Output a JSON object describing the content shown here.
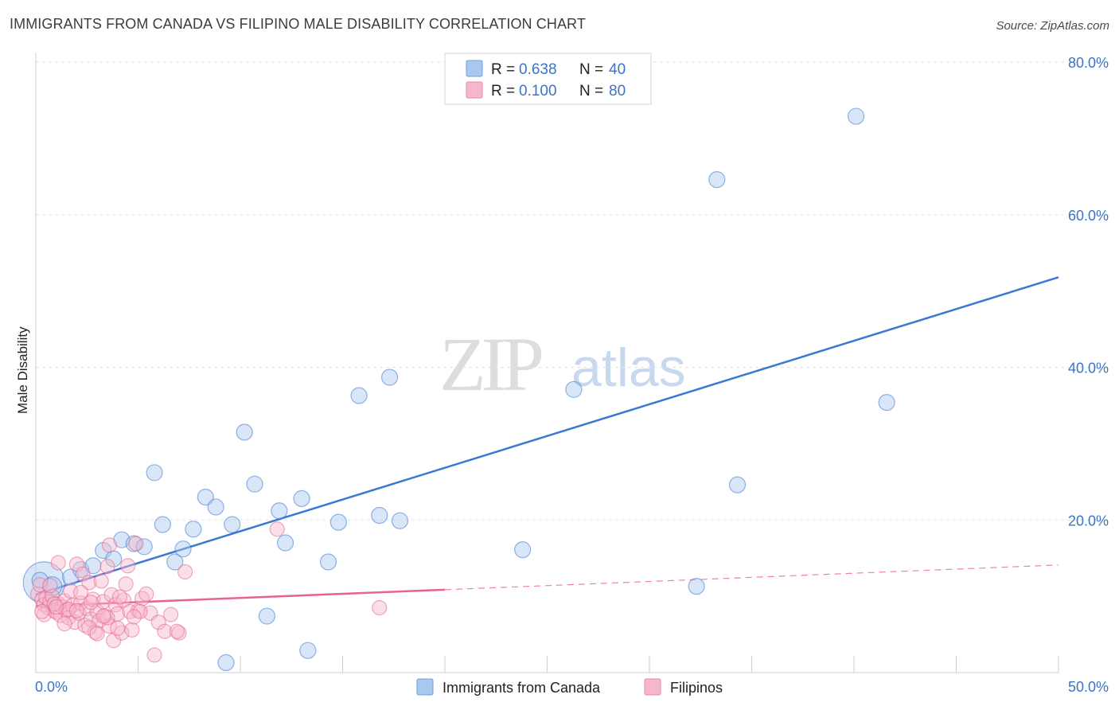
{
  "header": {
    "title": "IMMIGRANTS FROM CANADA VS FILIPINO MALE DISABILITY CORRELATION CHART",
    "source": "Source: ZipAtlas.com"
  },
  "watermark": {
    "zip": "ZIP",
    "atlas": "atlas"
  },
  "legend": {
    "rows": [
      {
        "r_label": "R = ",
        "r_value": "0.638",
        "n_label": "N = ",
        "n_value": "40",
        "color": "#a8c8f0"
      },
      {
        "r_label": "R = ",
        "r_value": "0.100",
        "n_label": "N = ",
        "n_value": "80",
        "color": "#f6b7cb"
      }
    ]
  },
  "bottom_legend": [
    {
      "label": "Immigrants from Canada",
      "color": "#a8c8f0"
    },
    {
      "label": "Filipinos",
      "color": "#f6b7cb"
    }
  ],
  "chart_data": {
    "type": "scatter",
    "title": "IMMIGRANTS FROM CANADA VS FILIPINO MALE DISABILITY CORRELATION CHART",
    "xlabel": "",
    "ylabel": "Male Disability",
    "xlim": [
      0,
      50
    ],
    "ylim": [
      0,
      80
    ],
    "x_tick_labels": [
      "0.0%",
      "50.0%"
    ],
    "y_ticks": [
      20,
      40,
      60,
      80
    ],
    "y_tick_labels": [
      "20.0%",
      "40.0%",
      "60.0%",
      "80.0%"
    ],
    "grid": true,
    "series": [
      {
        "name": "Immigrants from Canada",
        "color": "#3a78d4",
        "fill": "#a8c8f0",
        "trend": {
          "x": [
            0.0,
            50.0
          ],
          "y": [
            10.2,
            51.8
          ],
          "dashed_from_x": null
        },
        "points": [
          [
            0.4,
            11.8
          ],
          [
            0.8,
            11.3
          ],
          [
            1.7,
            12.5
          ],
          [
            2.2,
            13.5
          ],
          [
            2.8,
            14.0
          ],
          [
            3.3,
            16.0
          ],
          [
            3.8,
            14.9
          ],
          [
            4.2,
            17.4
          ],
          [
            4.8,
            16.9
          ],
          [
            5.3,
            16.5
          ],
          [
            5.8,
            26.2
          ],
          [
            6.2,
            19.4
          ],
          [
            6.8,
            14.5
          ],
          [
            7.2,
            16.2
          ],
          [
            7.7,
            18.8
          ],
          [
            8.3,
            23.0
          ],
          [
            8.8,
            21.7
          ],
          [
            9.3,
            1.3
          ],
          [
            9.6,
            19.4
          ],
          [
            10.2,
            31.5
          ],
          [
            10.7,
            24.7
          ],
          [
            11.3,
            7.4
          ],
          [
            11.9,
            21.2
          ],
          [
            12.2,
            17.0
          ],
          [
            13.0,
            22.8
          ],
          [
            13.3,
            2.9
          ],
          [
            14.3,
            14.5
          ],
          [
            14.8,
            19.7
          ],
          [
            15.8,
            36.3
          ],
          [
            16.8,
            20.6
          ],
          [
            17.3,
            38.7
          ],
          [
            17.8,
            19.9
          ],
          [
            23.8,
            16.1
          ],
          [
            26.3,
            37.1
          ],
          [
            32.3,
            11.3
          ],
          [
            33.3,
            64.6
          ],
          [
            34.3,
            24.6
          ],
          [
            40.1,
            72.9
          ],
          [
            41.6,
            35.4
          ],
          [
            0.2,
            12.1
          ]
        ],
        "point_sizes": [
          26,
          12,
          10,
          10,
          10,
          10,
          10,
          10,
          10,
          10,
          10,
          10,
          10,
          10,
          10,
          10,
          10,
          10,
          10,
          10,
          10,
          10,
          10,
          10,
          10,
          10,
          10,
          10,
          10,
          10,
          10,
          10,
          10,
          10,
          10,
          10,
          10,
          10,
          10,
          10
        ]
      },
      {
        "name": "Filipinos",
        "color": "#e8638e",
        "fill": "#f6b7cb",
        "trend": {
          "x": [
            0.0,
            50.0
          ],
          "y": [
            8.7,
            14.1
          ],
          "dashed_from_x": 20.0
        },
        "points": [
          [
            0.1,
            10.3
          ],
          [
            0.2,
            11.5
          ],
          [
            0.3,
            9.6
          ],
          [
            0.4,
            8.9
          ],
          [
            0.5,
            9.8
          ],
          [
            0.6,
            8.5
          ],
          [
            0.7,
            9.3
          ],
          [
            0.8,
            10.0
          ],
          [
            0.9,
            8.1
          ],
          [
            1.0,
            7.9
          ],
          [
            1.1,
            9.0
          ],
          [
            1.2,
            7.5
          ],
          [
            1.3,
            8.6
          ],
          [
            1.4,
            9.4
          ],
          [
            1.5,
            8.2
          ],
          [
            1.6,
            7.2
          ],
          [
            1.7,
            10.7
          ],
          [
            1.8,
            8.8
          ],
          [
            1.9,
            6.6
          ],
          [
            2.0,
            14.2
          ],
          [
            2.1,
            7.8
          ],
          [
            2.2,
            9.1
          ],
          [
            2.3,
            12.9
          ],
          [
            2.4,
            6.2
          ],
          [
            2.5,
            8.4
          ],
          [
            2.6,
            11.8
          ],
          [
            2.7,
            7.0
          ],
          [
            2.8,
            9.6
          ],
          [
            2.9,
            5.3
          ],
          [
            3.0,
            8.0
          ],
          [
            3.1,
            6.8
          ],
          [
            3.2,
            12.0
          ],
          [
            3.3,
            9.3
          ],
          [
            3.4,
            7.4
          ],
          [
            3.5,
            13.9
          ],
          [
            3.6,
            6.1
          ],
          [
            3.7,
            10.2
          ],
          [
            3.8,
            4.2
          ],
          [
            3.9,
            8.9
          ],
          [
            4.0,
            7.7
          ],
          [
            4.2,
            5.2
          ],
          [
            4.3,
            9.5
          ],
          [
            4.4,
            11.6
          ],
          [
            4.6,
            8.0
          ],
          [
            4.7,
            5.6
          ],
          [
            4.9,
            16.9
          ],
          [
            5.0,
            8.1
          ],
          [
            5.2,
            9.7
          ],
          [
            5.4,
            10.3
          ],
          [
            5.6,
            7.8
          ],
          [
            5.8,
            2.3
          ],
          [
            6.0,
            6.6
          ],
          [
            6.3,
            5.4
          ],
          [
            6.6,
            7.6
          ],
          [
            7.0,
            5.2
          ],
          [
            7.3,
            13.2
          ],
          [
            11.8,
            18.8
          ],
          [
            16.8,
            8.5
          ],
          [
            1.1,
            14.4
          ],
          [
            2.6,
            5.9
          ],
          [
            3.6,
            16.7
          ],
          [
            4.1,
            9.9
          ],
          [
            0.4,
            7.6
          ],
          [
            0.7,
            11.4
          ],
          [
            1.4,
            6.4
          ],
          [
            2.2,
            10.5
          ],
          [
            3.0,
            5.1
          ],
          [
            3.5,
            7.2
          ],
          [
            4.5,
            14.0
          ],
          [
            5.1,
            8.0
          ],
          [
            6.9,
            5.4
          ],
          [
            0.3,
            8.0
          ],
          [
            0.9,
            9.0
          ],
          [
            1.6,
            8.3
          ],
          [
            2.0,
            8.1
          ],
          [
            2.7,
            9.2
          ],
          [
            3.3,
            7.4
          ],
          [
            4.0,
            5.8
          ],
          [
            4.8,
            7.3
          ],
          [
            1.0,
            8.6
          ]
        ]
      }
    ]
  }
}
